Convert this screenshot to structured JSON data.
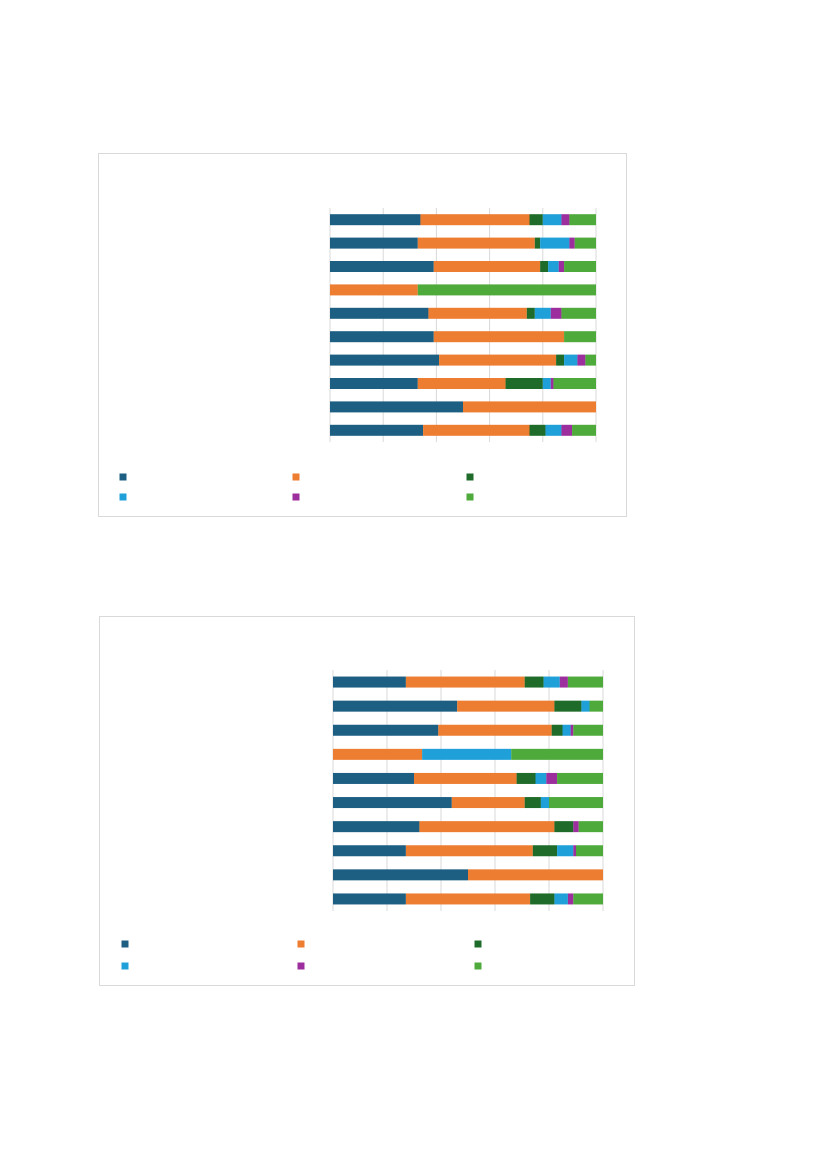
{
  "chart_data": [
    {
      "type": "stacked_bar_horizontal",
      "categories": [
        null,
        null,
        null,
        null,
        null,
        null,
        null,
        null,
        null,
        null
      ],
      "xlim": [
        0,
        100
      ],
      "xticks": [
        0,
        20,
        40,
        60,
        80,
        100
      ],
      "grid": true,
      "series": [
        {
          "color": "#1c5f82",
          "values": [
            34,
            33,
            39,
            0,
            37,
            39,
            41,
            33,
            50,
            35
          ]
        },
        {
          "color": "#ed7d31",
          "values": [
            41,
            44,
            40,
            33,
            37,
            49,
            44,
            33,
            50,
            40
          ]
        },
        {
          "color": "#1e6b2a",
          "values": [
            5,
            2,
            3,
            0,
            3,
            0,
            3,
            14,
            0,
            6
          ]
        },
        {
          "color": "#1fa0d8",
          "values": [
            7,
            11,
            4,
            0,
            6,
            0,
            5,
            3,
            0,
            6
          ]
        },
        {
          "color": "#9c2e9d",
          "values": [
            3,
            2,
            2,
            0,
            4,
            0,
            3,
            1,
            0,
            4
          ]
        },
        {
          "color": "#4eaa3a",
          "values": [
            10,
            8,
            12,
            67,
            13,
            12,
            4,
            16,
            0,
            9
          ]
        }
      ]
    },
    {
      "type": "stacked_bar_horizontal",
      "categories": [
        null,
        null,
        null,
        null,
        null,
        null,
        null,
        null,
        null,
        null
      ],
      "xlim": [
        0,
        100
      ],
      "xticks": [
        0,
        20,
        40,
        60,
        80,
        100
      ],
      "grid": true,
      "series": [
        {
          "color": "#1c5f82",
          "values": [
            27,
            46,
            39,
            0,
            30,
            44,
            32,
            27,
            50,
            27
          ]
        },
        {
          "color": "#ed7d31",
          "values": [
            44,
            36,
            42,
            33,
            38,
            27,
            50,
            47,
            50,
            46
          ]
        },
        {
          "color": "#1e6b2a",
          "values": [
            7,
            10,
            4,
            0,
            7,
            6,
            7,
            9,
            0,
            9
          ]
        },
        {
          "color": "#1fa0d8",
          "values": [
            6,
            3,
            3,
            33,
            4,
            3,
            0,
            6,
            0,
            5
          ]
        },
        {
          "color": "#9c2e9d",
          "values": [
            3,
            0,
            1,
            0,
            4,
            0,
            2,
            1,
            0,
            2
          ]
        },
        {
          "color": "#4eaa3a",
          "values": [
            13,
            5,
            11,
            34,
            17,
            20,
            9,
            10,
            0,
            11
          ]
        }
      ]
    }
  ]
}
